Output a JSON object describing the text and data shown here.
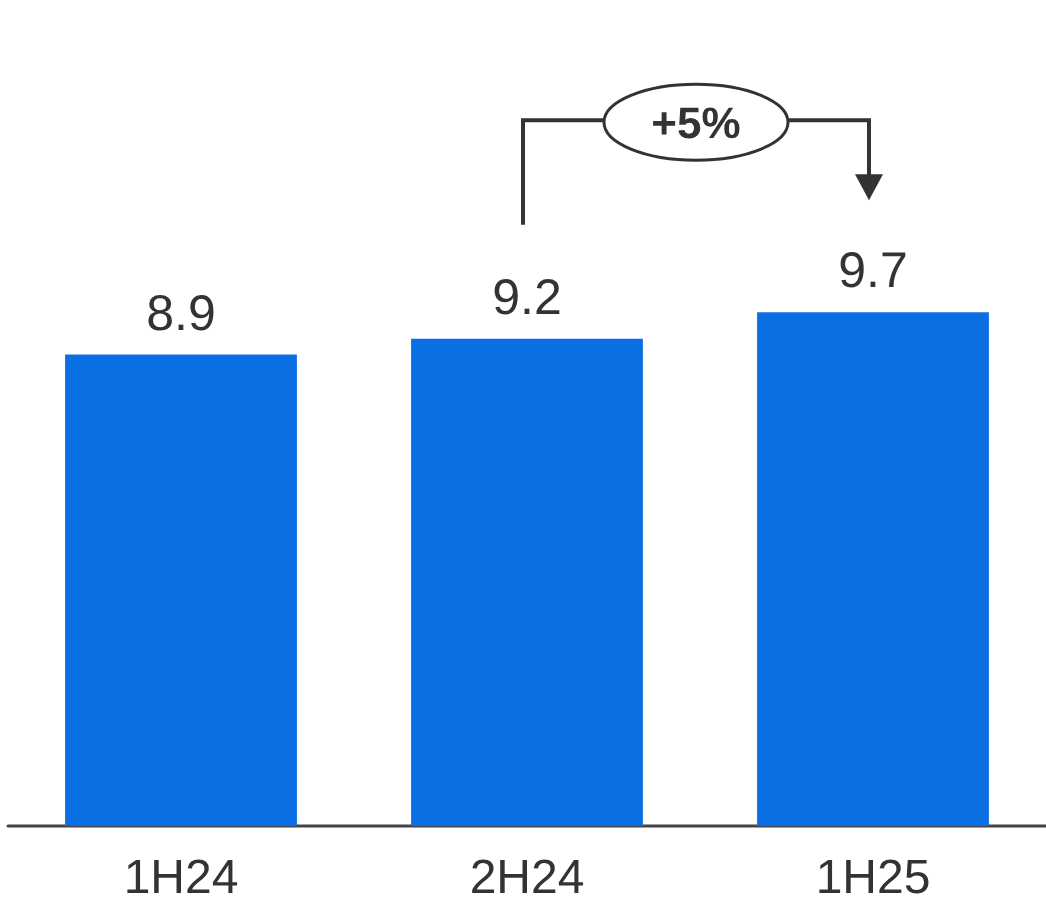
{
  "chart_data": {
    "type": "bar",
    "categories": [
      "1H24",
      "2H24",
      "1H25"
    ],
    "values": [
      8.9,
      9.2,
      9.7
    ],
    "color": "#0a6fe3",
    "data_labels": true,
    "tick_labels": "x",
    "grid": false,
    "annotations": [
      "+5%"
    ]
  }
}
